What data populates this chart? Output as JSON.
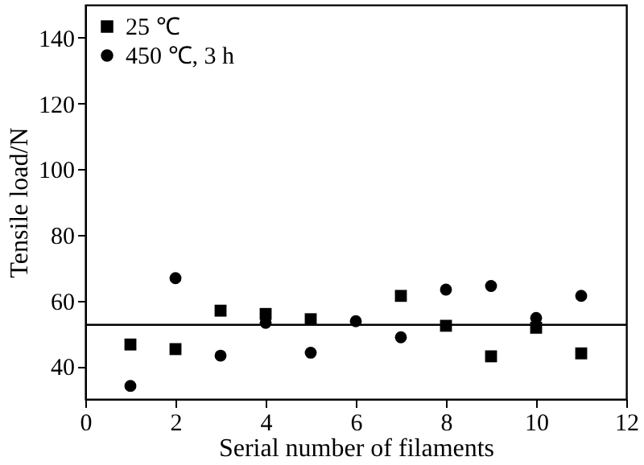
{
  "chart_data": {
    "type": "scatter",
    "xlabel": "Serial number of filaments",
    "ylabel": "Tensile load/N",
    "x": [
      1,
      2,
      3,
      4,
      5,
      6,
      7,
      8,
      9,
      10,
      11
    ],
    "series": [
      {
        "name": "25 ℃",
        "color": "#000000",
        "marker": "square",
        "x": [
          1,
          2,
          3,
          4,
          5,
          7,
          8,
          9,
          10,
          11
        ],
        "values": [
          46.6,
          45.2,
          56.9,
          55.9,
          54.3,
          61.4,
          52.3,
          43,
          51.7,
          43.9
        ]
      },
      {
        "name": "450 ℃, 3 h",
        "color": "#000000",
        "marker": "circle",
        "values": [
          34,
          66.8,
          43.2,
          53.2,
          44.1,
          53.7,
          48.8,
          63.3,
          64.4,
          54.7,
          61.4
        ]
      }
    ],
    "ref_lines": [
      {
        "axis": "y",
        "value": 52.6,
        "color": "#000000"
      }
    ],
    "xlim": [
      0,
      12
    ],
    "xticks": [
      0,
      2,
      4,
      6,
      8,
      10,
      12
    ],
    "ylim": [
      30,
      150
    ],
    "yticks": [
      40,
      60,
      80,
      100,
      120,
      140
    ],
    "grid": false,
    "legend": "top left"
  }
}
